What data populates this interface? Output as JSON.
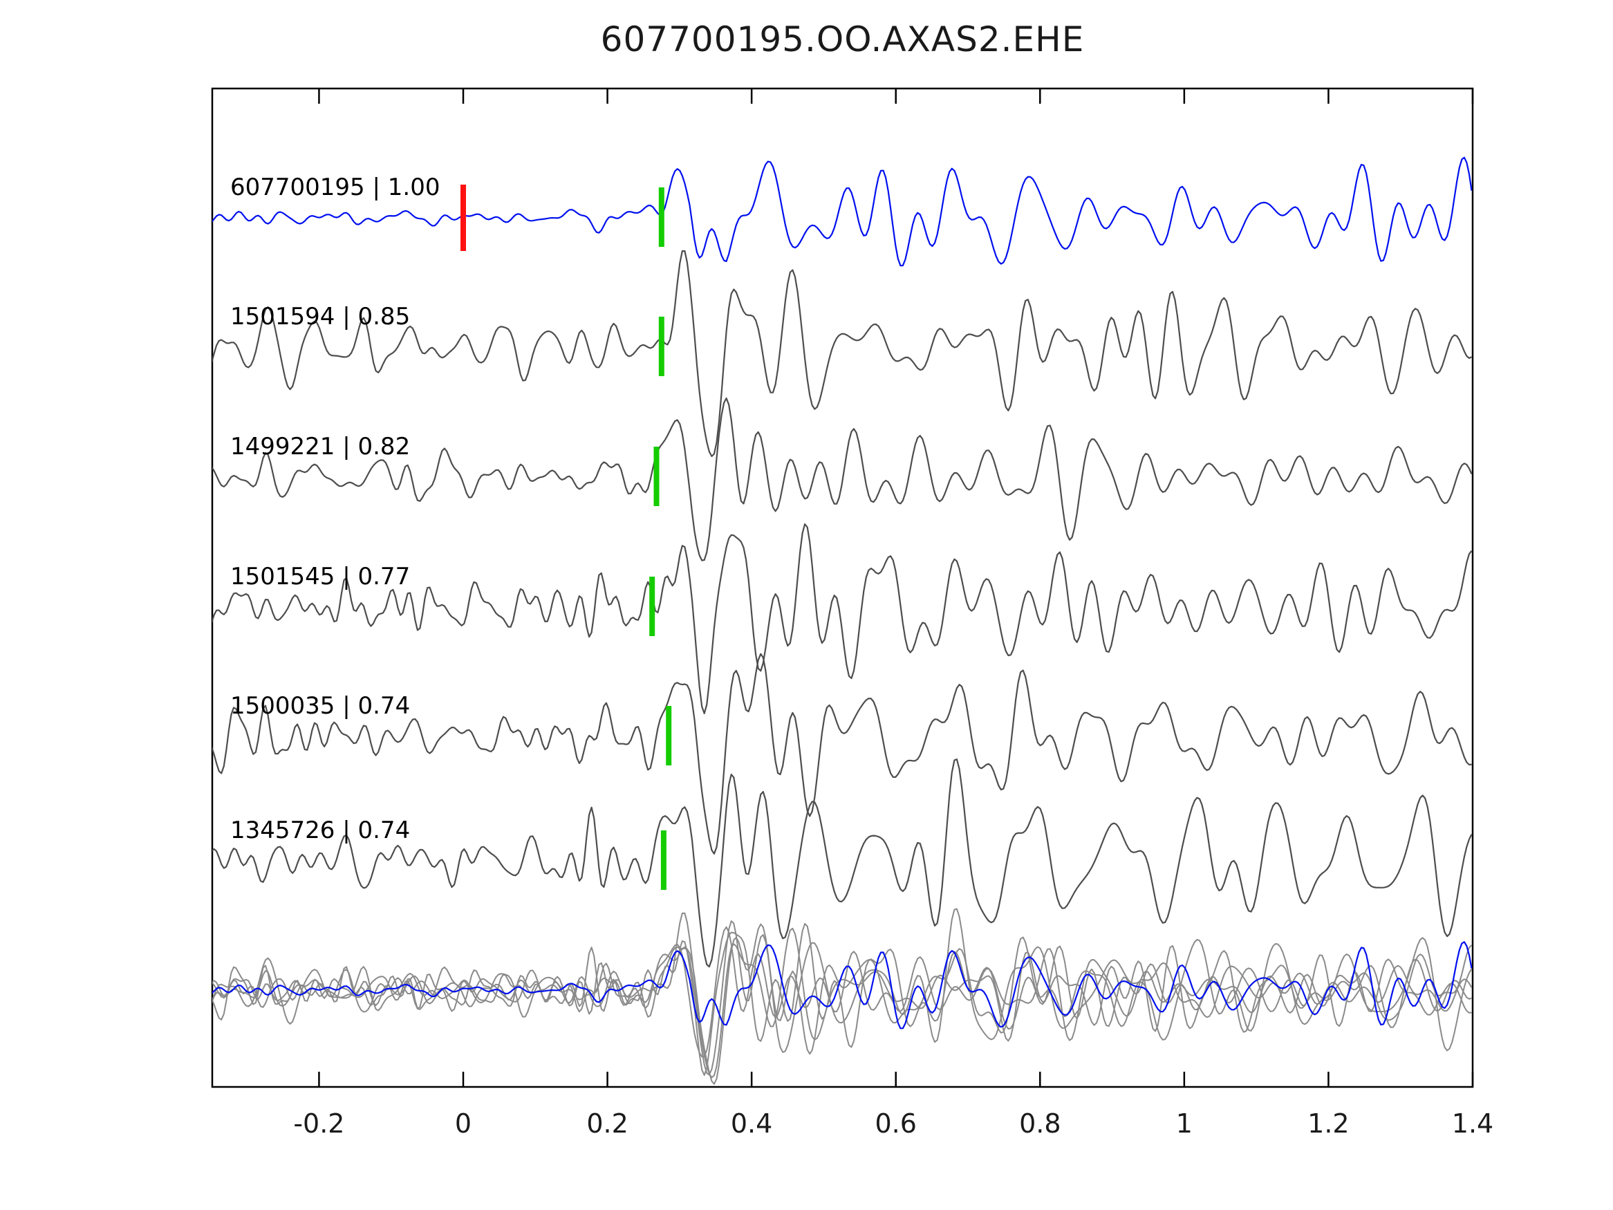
{
  "chart_data": {
    "type": "line",
    "title": "607700195.OO.AXAS2.EHE",
    "xlabel": "",
    "ylabel": "",
    "xlim": [
      -0.35,
      1.4
    ],
    "xticks": [
      "-0.2",
      "0",
      "0.2",
      "0.4",
      "0.6",
      "0.8",
      "1",
      "1.2",
      "1.4"
    ],
    "xtick_values": [
      -0.2,
      0,
      0.2,
      0.4,
      0.6,
      0.8,
      1,
      1.2,
      1.4
    ],
    "grid": false,
    "legend_position": "none",
    "colors": {
      "template_trace": "#0010ee",
      "match_trace": "#4d4d4d",
      "overlay_trace": "#8a8a8a",
      "pick_marker": "#15cc00",
      "reference_marker": "#ff1111",
      "axes": "#000000"
    },
    "traces": [
      {
        "id": "607700195",
        "correlation": "1.00",
        "label": "607700195 | 1.00",
        "role": "template",
        "pick_time": 0.275,
        "reference_time": 0.0
      },
      {
        "id": "1501594",
        "correlation": "0.85",
        "label": "1501594 | 0.85",
        "role": "match",
        "pick_time": 0.275
      },
      {
        "id": "1499221",
        "correlation": "0.82",
        "label": "1499221 | 0.82",
        "role": "match",
        "pick_time": 0.268
      },
      {
        "id": "1501545",
        "correlation": "0.77",
        "label": "1501545 | 0.77",
        "role": "match",
        "pick_time": 0.262
      },
      {
        "id": "1500035",
        "correlation": "0.74",
        "label": "1500035 | 0.74",
        "role": "match",
        "pick_time": 0.285
      },
      {
        "id": "1345726",
        "correlation": "0.74",
        "label": "1345726 | 0.74",
        "role": "match",
        "pick_time": 0.278
      }
    ],
    "overlay_row": true
  }
}
